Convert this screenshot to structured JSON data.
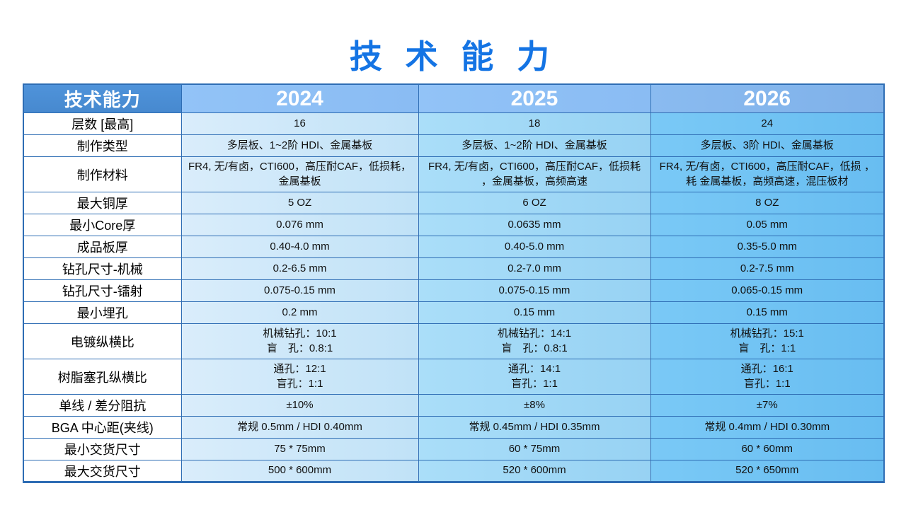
{
  "title": "技 术 能 力",
  "colors": {
    "title_blue": "#1474e4",
    "border_blue": "#2e6db4",
    "header_label_bg": "#4f93da",
    "header_year_bg": "#8abcf3",
    "col_2024_a": "#daedfb",
    "col_2024_b": "#c0e2f7",
    "col_2025_a": "#aadef9",
    "col_2025_b": "#97d2f3",
    "col_2026_a": "#7ac9f6",
    "col_2026_b": "#68bdf1"
  },
  "table": {
    "columns": [
      "技术能力",
      "2024",
      "2025",
      "2026"
    ],
    "rows": [
      {
        "label": "层数 [最高]",
        "values": [
          "16",
          "18",
          "24"
        ]
      },
      {
        "label": "制作类型",
        "values": [
          "多层板、1~2阶 HDI、金属基板",
          "多层板、1~2阶 HDI、金属基板",
          "多层板、3阶 HDI、金属基板"
        ]
      },
      {
        "label": "制作材料",
        "values": [
          "FR4, 无/有卤，CTI600，高压耐CAF，低损耗，\n金属基板",
          "FR4, 无/有卤，CTI600，高压耐CAF，低损耗\n，金属基板，高频高速",
          "FR4, 无/有卤，CTI600，高压耐CAF，低损 ，\n耗 金属基板，高频高速，混压板材"
        ]
      },
      {
        "label": "最大铜厚",
        "values": [
          "5 OZ",
          "6 OZ",
          "8 OZ"
        ]
      },
      {
        "label": "最小Core厚",
        "values": [
          "0.076 mm",
          "0.0635 mm",
          "0.05 mm"
        ]
      },
      {
        "label": "成品板厚",
        "values": [
          "0.40-4.0 mm",
          "0.40-5.0 mm",
          "0.35-5.0 mm"
        ]
      },
      {
        "label": "钻孔尺寸-机械",
        "values": [
          "0.2-6.5 mm",
          "0.2-7.0 mm",
          "0.2-7.5 mm"
        ]
      },
      {
        "label": "钻孔尺寸-镭射",
        "values": [
          "0.075-0.15 mm",
          "0.075-0.15 mm",
          "0.065-0.15 mm"
        ]
      },
      {
        "label": "最小埋孔",
        "values": [
          "0.2 mm",
          "0.15 mm",
          "0.15 mm"
        ]
      },
      {
        "label": "电镀纵横比",
        "values": [
          "机械钻孔：10:1\n盲　孔：0.8:1",
          "机械钻孔：14:1\n盲　孔：0.8:1",
          "机械钻孔：15:1\n盲　孔：1:1"
        ]
      },
      {
        "label": "树脂塞孔纵横比",
        "values": [
          "通孔：12:1\n盲孔：1:1",
          "通孔：14:1\n盲孔：1:1",
          "通孔：16:1\n盲孔：1:1"
        ]
      },
      {
        "label": "单线 / 差分阻抗",
        "values": [
          "±10%",
          "±8%",
          "±7%"
        ]
      },
      {
        "label": "BGA 中心距(夹线)",
        "values": [
          "常规 0.5mm / HDI 0.40mm",
          "常规 0.45mm / HDI 0.35mm",
          "常规 0.4mm / HDI 0.30mm"
        ]
      },
      {
        "label": "最小交货尺寸",
        "values": [
          "75 * 75mm",
          "60 * 75mm",
          "60 * 60mm"
        ]
      },
      {
        "label": "最大交货尺寸",
        "values": [
          "500 * 600mm",
          "520 * 600mm",
          "520 * 650mm"
        ]
      }
    ]
  }
}
